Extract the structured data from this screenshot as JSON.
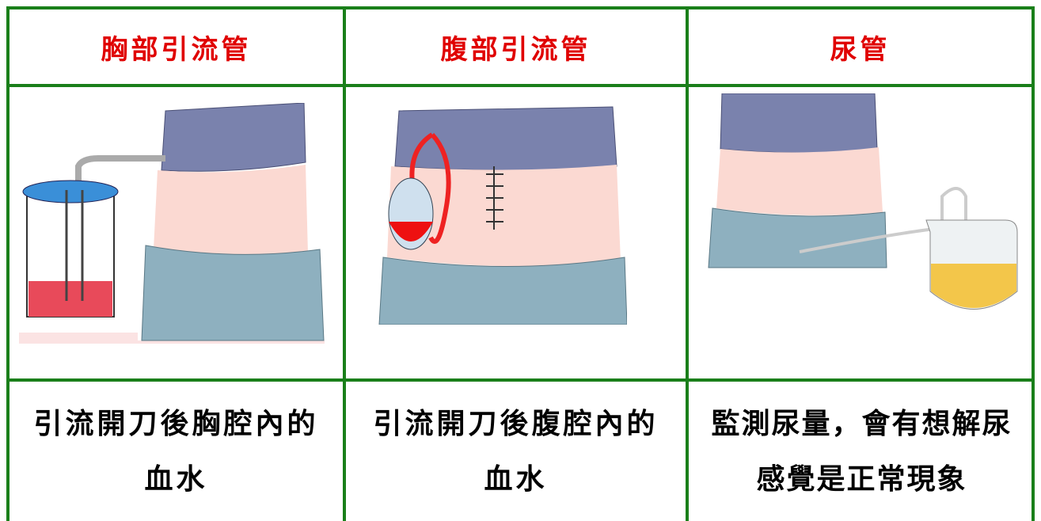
{
  "table": {
    "headers": [
      "胸部引流管",
      "腹部引流管",
      "尿管"
    ],
    "descriptions": [
      [
        "引流開刀後胸腔內的",
        "血水"
      ],
      [
        "引流開刀後腹腔內的",
        "血水"
      ],
      [
        "監測尿量，會有想解尿",
        "感覺是正常現象"
      ]
    ]
  }
}
